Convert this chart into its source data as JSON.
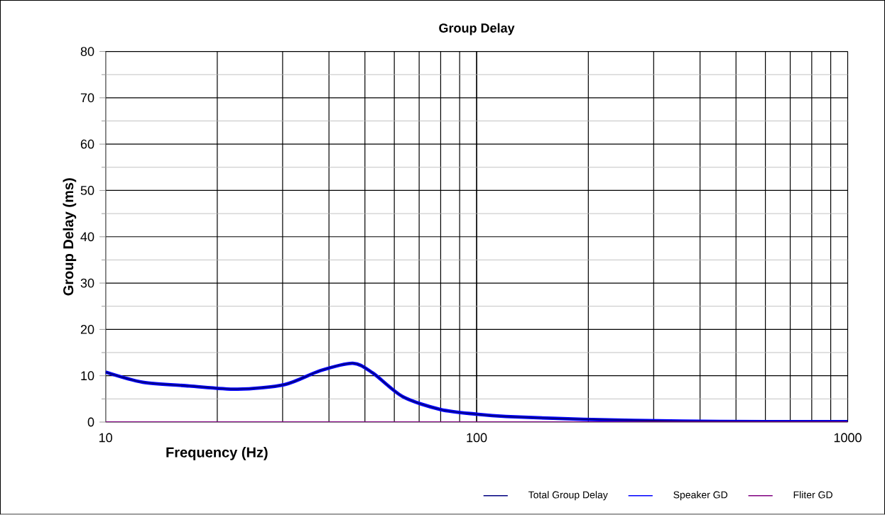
{
  "chart_data": {
    "type": "line",
    "title": "Group Delay",
    "xlabel": "Frequency (Hz)",
    "ylabel": "Group Delay (ms)",
    "log": "x",
    "xlim": [
      10,
      1000
    ],
    "xticks": [
      10,
      100,
      1000
    ],
    "ylim": [
      0,
      80
    ],
    "yticks": [
      0,
      10,
      20,
      30,
      40,
      50,
      60,
      70,
      80
    ],
    "grid": true,
    "legend": "bottom",
    "line_style": "solid",
    "marker": "none",
    "x": [
      10,
      12.6,
      16.8,
      22.7,
      30.4,
      37.9,
      46.4,
      52.5,
      63.2,
      80,
      100,
      120,
      194,
      359,
      600,
      1000
    ],
    "series": [
      {
        "name": "Total Group Delay",
        "color": "#000080",
        "values": [
          10.8,
          8.6,
          7.8,
          7.1,
          8.1,
          11.1,
          12.7,
          10.6,
          5.5,
          2.7,
          1.7,
          1.2,
          0.6,
          0.2,
          0.1,
          0.1
        ]
      },
      {
        "name": "Speaker GD",
        "color": "#0000ff",
        "values": [
          10.8,
          8.6,
          7.8,
          7.1,
          8.1,
          11.1,
          12.7,
          10.6,
          5.5,
          2.7,
          1.7,
          1.2,
          0.6,
          0.2,
          0.1,
          0.1
        ]
      },
      {
        "name": "Fliter GD",
        "color": "#800080",
        "values": [
          0,
          0,
          0,
          0,
          0,
          0,
          0,
          0,
          0,
          0,
          0,
          0,
          0,
          0,
          0,
          0
        ]
      }
    ]
  }
}
